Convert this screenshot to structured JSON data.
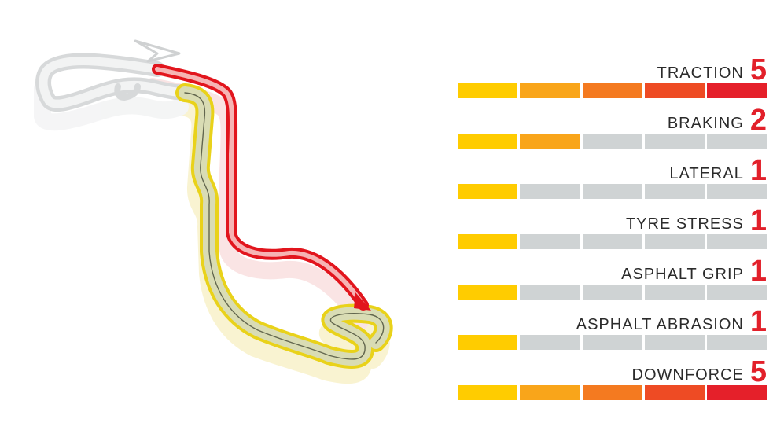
{
  "ratings": [
    {
      "label": "TRACTION",
      "value": 5
    },
    {
      "label": "BRAKING",
      "value": 2
    },
    {
      "label": "LATERAL",
      "value": 1
    },
    {
      "label": "TYRE STRESS",
      "value": 1
    },
    {
      "label": "ASPHALT GRIP",
      "value": 1
    },
    {
      "label": "ASPHALT ABRASION",
      "value": 1
    },
    {
      "label": "DOWNFORCE",
      "value": 5
    }
  ],
  "scale_max": 5,
  "colors": {
    "label": "#2b2b2b",
    "value": "#e2202a",
    "inactive_segment": "#cfd3d4",
    "segments": [
      "#ffcc00",
      "#f9a51a",
      "#f47a20",
      "#ee4b24",
      "#e5202a"
    ],
    "track_sector_red": "#e2151d",
    "track_sector_yellow": "#f2dc1c",
    "track_sector_grey": "#c9cbcc"
  }
}
